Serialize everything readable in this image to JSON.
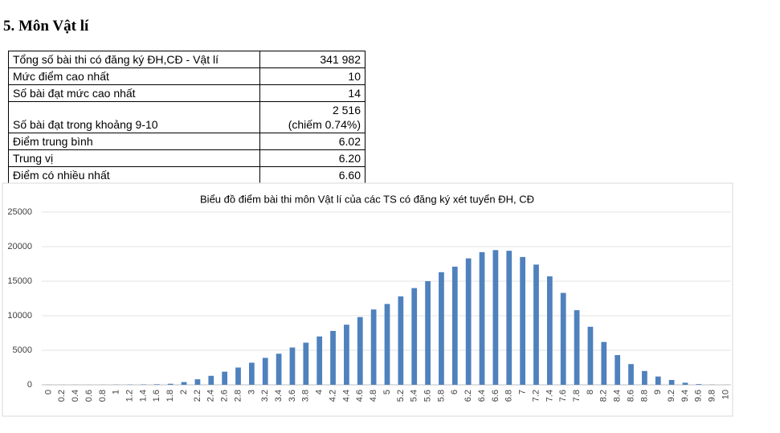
{
  "heading": "5. Môn Vật lí",
  "table": {
    "rows": [
      {
        "label": "Tổng số bài thi có đăng ký ĐH,CĐ - Vật lí",
        "value": "341 982"
      },
      {
        "label": "Mức điểm cao nhất",
        "value": "10"
      },
      {
        "label": "Số bài đạt mức cao nhất",
        "value": "14"
      },
      {
        "label": "Số bài đạt trong khoảng 9-10",
        "value": [
          "2 516",
          "(chiếm 0.74%)"
        ]
      },
      {
        "label": "Điểm trung bình",
        "value": "6.02"
      },
      {
        "label": "Trung vị",
        "value": "6.20"
      },
      {
        "label": "Điểm có nhiều nhất",
        "value": "6.60"
      }
    ]
  },
  "chart_data": {
    "type": "bar",
    "title": "Biểu đồ điểm bài thi môn Vật lí của các TS có đăng ký xét tuyển ĐH, CĐ",
    "categories": [
      "0",
      "0.2",
      "0.4",
      "0.6",
      "0.8",
      "1",
      "1.2",
      "1.4",
      "1.6",
      "1.8",
      "2",
      "2.2",
      "2.4",
      "2.6",
      "2.8",
      "3",
      "3.2",
      "3.4",
      "3.6",
      "3.8",
      "4",
      "4.2",
      "4.4",
      "4.6",
      "4.8",
      "5",
      "5.2",
      "5.4",
      "5.6",
      "5.8",
      "6",
      "6.2",
      "6.4",
      "6.6",
      "6.8",
      "7",
      "7.2",
      "7.4",
      "7.6",
      "7.8",
      "8",
      "8.2",
      "8.4",
      "8.6",
      "8.8",
      "9",
      "9.2",
      "9.4",
      "9.6",
      "9.8",
      "10"
    ],
    "values": [
      20,
      10,
      15,
      10,
      20,
      30,
      40,
      60,
      80,
      150,
      400,
      800,
      1300,
      1900,
      2500,
      3200,
      3900,
      4500,
      5400,
      6100,
      7000,
      7800,
      8700,
      9800,
      10900,
      11700,
      12800,
      14000,
      15000,
      16300,
      17100,
      18300,
      19200,
      19500,
      19400,
      18500,
      17400,
      15700,
      13300,
      10800,
      8400,
      6200,
      4300,
      3000,
      2000,
      1200,
      700,
      300,
      100,
      30,
      14
    ],
    "color": "#4f81bd",
    "ylim": [
      0,
      25000
    ],
    "yticks": [
      0,
      5000,
      10000,
      15000,
      20000,
      25000
    ],
    "grid": true
  }
}
